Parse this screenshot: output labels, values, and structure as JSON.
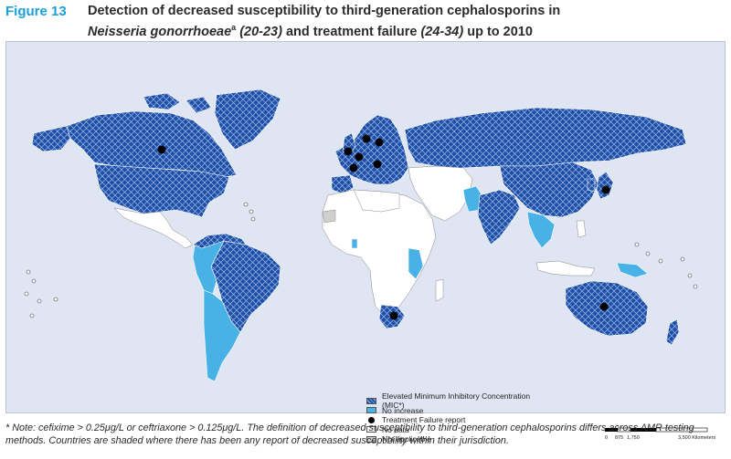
{
  "figure": {
    "label": "Figure 13",
    "title_part1": "Detection of decreased susceptibility to third-generation cephalosporins in",
    "organism": "Neisseria gonorrhoeae",
    "superscript": "a",
    "refs1": "(20-23)",
    "title_part2": " and treatment failure ",
    "refs2": "(24-34)",
    "title_part3": " up to 2010"
  },
  "legend": {
    "items": [
      {
        "label": "Elevated Minimum Inhibitory Concentration (MIC*)",
        "fill": "hatched-dark-blue"
      },
      {
        "label": "No increase",
        "fill": "#48b1e6"
      },
      {
        "label": "Treatment Failure report",
        "fill": "black-dot"
      },
      {
        "label": "No data",
        "fill": "#ffffff"
      },
      {
        "label": "Not applicable",
        "fill": "#cfcfcf"
      }
    ]
  },
  "scale": {
    "ticks": [
      "0",
      "875",
      "1,750",
      "3,500 Kilometers"
    ]
  },
  "note": "* Note: cefixime > 0.25μg/L or ceftriaxone > 0.125μg/L. The definition of decreased susceptibility to third-generation cephalosporins differs across AMR testing methods. Countries are shaded where there has been any report of decreased susceptibility within their jurisdiction.",
  "colors": {
    "elevated": "#1d4fa8",
    "no_increase": "#48b1e6",
    "no_data": "#ffffff",
    "not_applicable": "#cfcfcf",
    "ocean": "#dfe5f3",
    "accent": "#1a9fd9"
  },
  "map_regions": [
    {
      "name": "Canada",
      "status": "elevated"
    },
    {
      "name": "Greenland",
      "status": "elevated"
    },
    {
      "name": "United States",
      "status": "elevated"
    },
    {
      "name": "Russia",
      "status": "elevated"
    },
    {
      "name": "China",
      "status": "elevated"
    },
    {
      "name": "Japan",
      "status": "elevated"
    },
    {
      "name": "Australia",
      "status": "elevated"
    },
    {
      "name": "Brazil",
      "status": "elevated"
    },
    {
      "name": "Europe",
      "status": "elevated"
    },
    {
      "name": "South Africa",
      "status": "elevated"
    },
    {
      "name": "India",
      "status": "elevated"
    },
    {
      "name": "Pakistan",
      "status": "no_increase"
    },
    {
      "name": "Andean South America",
      "status": "no_increase"
    },
    {
      "name": "Southern Cone",
      "status": "no_increase"
    },
    {
      "name": "Southeast Asia",
      "status": "no_increase"
    },
    {
      "name": "Papua New Guinea",
      "status": "no_increase"
    },
    {
      "name": "East Africa",
      "status": "no_increase"
    },
    {
      "name": "Africa",
      "status": "no_data"
    },
    {
      "name": "Middle East",
      "status": "no_data"
    },
    {
      "name": "Mexico and Central America",
      "status": "no_data"
    },
    {
      "name": "Western Sahara",
      "status": "not_applicable"
    }
  ],
  "treatment_failures": [
    "Canada",
    "Norway",
    "Sweden",
    "United Kingdom",
    "Netherlands",
    "France",
    "Austria",
    "Japan",
    "Australia",
    "South Africa"
  ]
}
